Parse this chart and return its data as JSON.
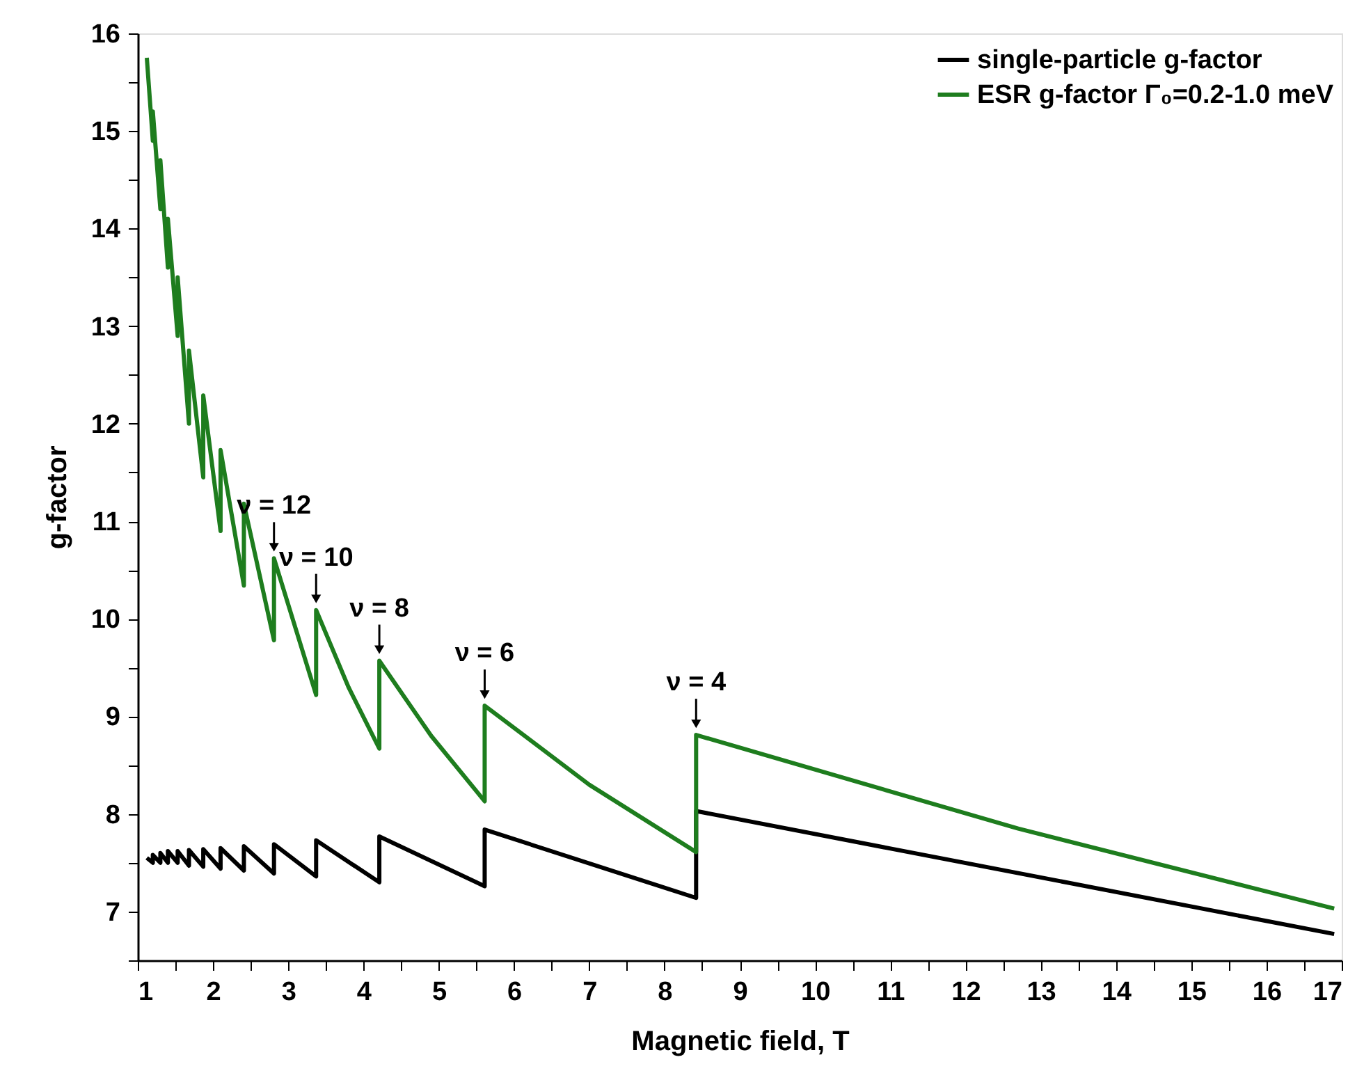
{
  "chart_data": {
    "type": "line",
    "xlabel": "Magnetic field, T",
    "ylabel": "g-factor",
    "xlim": [
      1,
      17
    ],
    "ylim": [
      6.5,
      16
    ],
    "xticks": [
      1,
      {
        "value": 1.5,
        "label": null
      },
      2,
      {
        "value": 2.5,
        "label": null
      },
      3,
      {
        "value": 3.5,
        "label": null
      },
      4,
      {
        "value": 4.5,
        "label": null
      },
      5,
      {
        "value": 5.5,
        "label": null
      },
      6,
      {
        "value": 6.5,
        "label": null
      },
      7,
      {
        "value": 7.5,
        "label": null
      },
      8,
      {
        "value": 8.5,
        "label": null
      },
      9,
      {
        "value": 9.5,
        "label": null
      },
      10,
      {
        "value": 10.5,
        "label": null
      },
      11,
      {
        "value": 11.5,
        "label": null
      },
      12,
      {
        "value": 12.5,
        "label": null
      },
      13,
      {
        "value": 13.5,
        "label": null
      },
      14,
      {
        "value": 14.5,
        "label": null
      },
      15,
      {
        "value": 15.5,
        "label": null
      },
      16,
      {
        "value": 16.5,
        "label": null
      },
      17
    ],
    "yticks": [
      {
        "value": 6.5,
        "label": null
      },
      7,
      {
        "value": 7.5,
        "label": null
      },
      8,
      {
        "value": 8.5,
        "label": null
      },
      9,
      {
        "value": 9.5,
        "label": null
      },
      10,
      {
        "value": 10.5,
        "label": null
      },
      11,
      {
        "value": 11.5,
        "label": null
      },
      12,
      {
        "value": 12.5,
        "label": null
      },
      13,
      {
        "value": 13.5,
        "label": null
      },
      14,
      {
        "value": 14.5,
        "label": null
      },
      15,
      {
        "value": 15.5,
        "label": null
      },
      16
    ],
    "grid": false,
    "legend": "top right",
    "marker": "none",
    "line_style": "solid",
    "series": [
      {
        "name": "single-particle g-factor",
        "color": "#000000",
        "x": [
          1.12,
          1.2,
          1.2,
          1.3,
          1.3,
          1.4,
          1.4,
          1.53,
          1.53,
          1.68,
          1.68,
          1.87,
          1.87,
          2.1,
          2.1,
          2.41,
          2.41,
          2.81,
          2.81,
          3.37,
          3.37,
          4.21,
          4.21,
          5.61,
          5.61,
          8.42,
          8.42,
          16.9
        ],
        "values": [
          7.55,
          7.5,
          7.58,
          7.5,
          7.6,
          7.5,
          7.62,
          7.5,
          7.62,
          7.47,
          7.63,
          7.46,
          7.64,
          7.44,
          7.65,
          7.42,
          7.67,
          7.39,
          7.69,
          7.36,
          7.73,
          7.3,
          7.77,
          7.26,
          7.84,
          7.14,
          8.03,
          6.77
        ]
      },
      {
        "name": "ESR g-factor Γ₀=0.2-1.0 meV",
        "color": "#1e7d1e",
        "x": [
          1.12,
          1.2,
          1.2,
          1.3,
          1.3,
          1.4,
          1.4,
          1.53,
          1.53,
          1.68,
          1.68,
          1.87,
          1.87,
          2.1,
          2.1,
          2.41,
          2.41,
          2.81,
          2.81,
          3.37,
          3.37,
          3.8,
          4.21,
          4.21,
          4.9,
          5.61,
          5.61,
          7.0,
          8.42,
          8.42,
          12.7,
          16.9
        ],
        "values": [
          15.75,
          14.9,
          15.2,
          14.2,
          14.7,
          13.6,
          14.1,
          12.9,
          13.5,
          12.0,
          12.75,
          11.45,
          12.29,
          10.9,
          11.73,
          10.34,
          11.18,
          9.78,
          10.62,
          9.22,
          10.09,
          9.3,
          8.67,
          9.57,
          8.8,
          8.13,
          9.11,
          8.3,
          7.61,
          8.81,
          7.85,
          7.03
        ]
      }
    ],
    "annotations": [
      {
        "text": "ν = 12",
        "x": 2.81,
        "y": 10.62
      },
      {
        "text": "ν = 10",
        "x": 3.37,
        "y": 10.09
      },
      {
        "text": "ν = 8",
        "x": 4.21,
        "y": 9.57
      },
      {
        "text": "ν = 6",
        "x": 5.61,
        "y": 9.11
      },
      {
        "text": "ν = 4",
        "x": 8.42,
        "y": 8.81
      }
    ]
  }
}
